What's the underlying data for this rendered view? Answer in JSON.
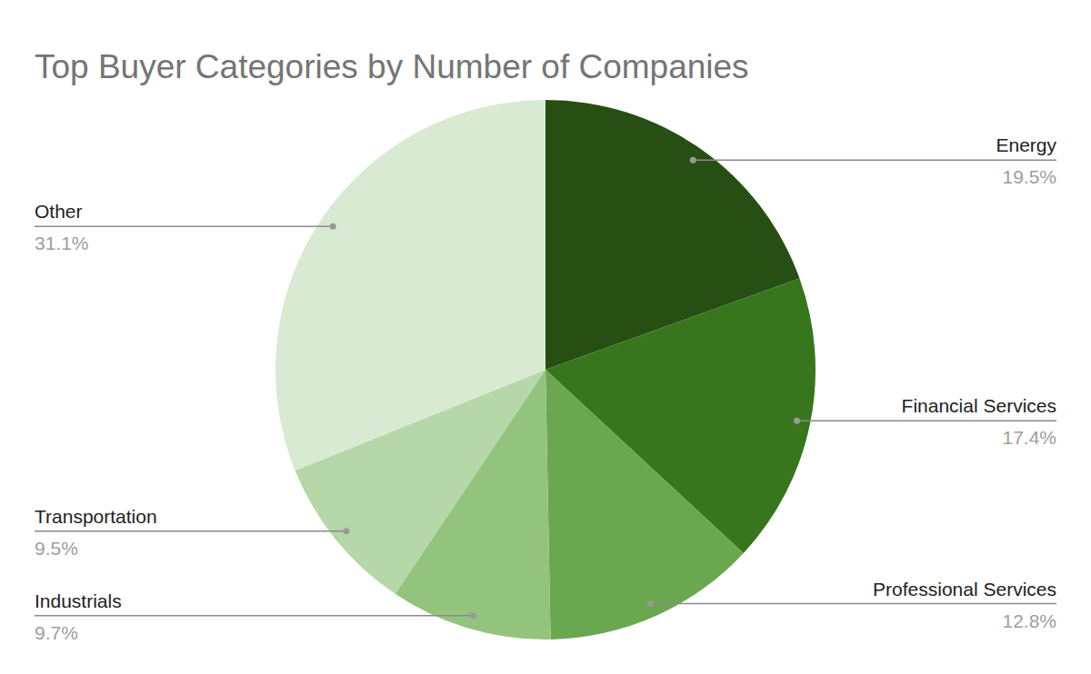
{
  "chart_data": {
    "type": "pie",
    "title": "Top Buyer Categories by Number of Companies",
    "categories": [
      "Energy",
      "Financial Services",
      "Professional Services",
      "Industrials",
      "Transportation",
      "Other"
    ],
    "values": [
      19.5,
      17.4,
      12.8,
      9.7,
      9.5,
      31.1
    ],
    "value_labels": [
      "19.5%",
      "17.4%",
      "12.8%",
      "9.7%",
      "9.5%",
      "31.1%"
    ],
    "colors": [
      "#274e13",
      "#38761d",
      "#6aa84f",
      "#93c47d",
      "#b6d7a8",
      "#d9ead3"
    ],
    "data_labels": true
  }
}
